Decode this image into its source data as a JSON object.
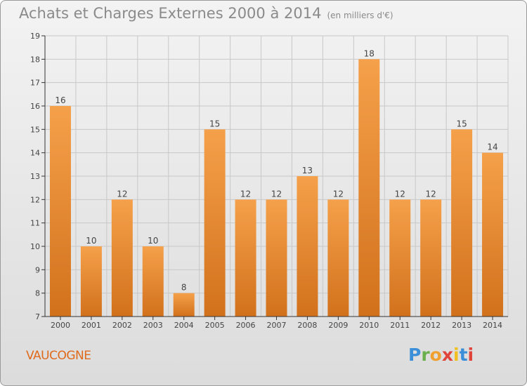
{
  "title": "Achats et Charges Externes 2000 à 2014",
  "unit": "(en milliers d'€)",
  "location": "VAUCOGNE",
  "logo_text": "Proxiti",
  "colors": {
    "bar_top": "#f5a04a",
    "bar_bottom": "#d2711c",
    "axis": "#333333",
    "grid": "#c8c8c8"
  },
  "chart_data": {
    "type": "bar",
    "title": "Achats et Charges Externes 2000 à 2014",
    "categories": [
      "2000",
      "2001",
      "2002",
      "2003",
      "2004",
      "2005",
      "2006",
      "2007",
      "2008",
      "2009",
      "2010",
      "2011",
      "2012",
      "2013",
      "2014"
    ],
    "values": [
      16,
      10,
      12,
      10,
      8,
      15,
      12,
      12,
      13,
      12,
      18,
      12,
      12,
      15,
      14
    ],
    "ylim": [
      7,
      19
    ],
    "yticks": [
      7,
      8,
      9,
      10,
      11,
      12,
      13,
      14,
      15,
      16,
      17,
      18,
      19
    ],
    "xlabel": "",
    "ylabel": "",
    "grid": true,
    "data_labels": true
  }
}
